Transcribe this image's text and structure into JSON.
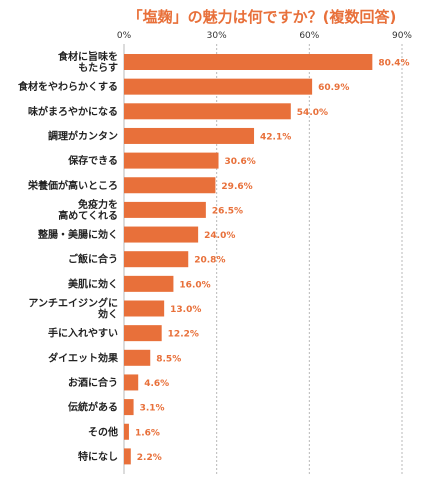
{
  "chart_data": {
    "type": "bar",
    "orientation": "horizontal",
    "title": "「塩麹」の魅力は何ですか？(複数回答)",
    "categories": [
      [
        "食材に旨味を",
        "もたらす"
      ],
      [
        "食材をやわらかくする"
      ],
      [
        "味がまろやかになる"
      ],
      [
        "調理がカンタン"
      ],
      [
        "保存できる"
      ],
      [
        "栄養価が高いところ"
      ],
      [
        "免疫力を",
        "高めてくれる"
      ],
      [
        "整腸・美腸に効く"
      ],
      [
        "ご飯に合う"
      ],
      [
        "美肌に効く"
      ],
      [
        "アンチエイジングに",
        "効く"
      ],
      [
        "手に入れやすい"
      ],
      [
        "ダイエット効果"
      ],
      [
        "お酒に合う"
      ],
      [
        "伝統がある"
      ],
      [
        "その他"
      ],
      [
        "特になし"
      ]
    ],
    "values": [
      80.4,
      60.9,
      54.0,
      42.1,
      30.6,
      29.6,
      26.5,
      24.0,
      20.8,
      16.0,
      13.0,
      12.2,
      8.5,
      4.6,
      3.1,
      1.6,
      2.2
    ],
    "value_labels": [
      "80.4%",
      "60.9%",
      "54.0%",
      "42.1%",
      "30.6%",
      "29.6%",
      "26.5%",
      "24.0%",
      "20.8%",
      "16.0%",
      "13.0%",
      "12.2%",
      "8.5%",
      "4.6%",
      "3.1%",
      "1.6%",
      "2.2%"
    ],
    "xlim": [
      0,
      90
    ],
    "xticks": [
      0,
      30,
      60,
      90
    ],
    "xtick_labels": [
      "0%",
      "30%",
      "60%",
      "90%"
    ],
    "xlabel": "",
    "ylabel": "",
    "grid": true,
    "legend": "none",
    "colors": {
      "bar": "#e8703a",
      "title": "#e8703a",
      "value_label": "#e8703a",
      "grid": "#b8b8b8"
    }
  }
}
